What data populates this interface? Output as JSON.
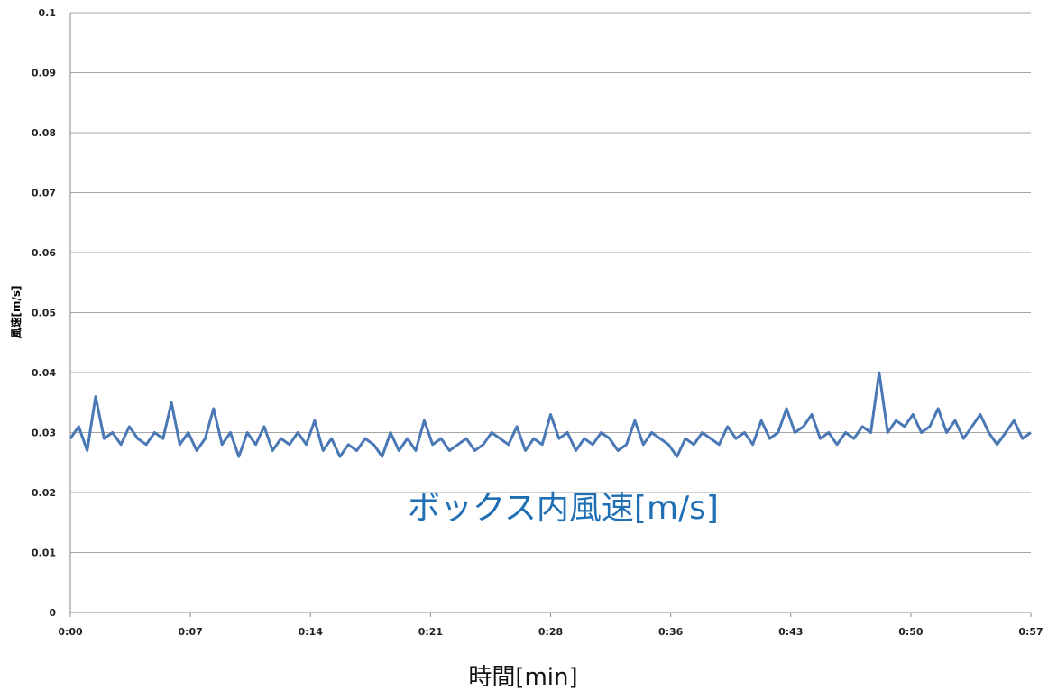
{
  "chart_data": {
    "type": "line",
    "title": "",
    "xlabel": "時間[min]",
    "ylabel": "風速[m/s]",
    "annotation": "ボックス内風速[m/s]",
    "xlim": [
      0,
      57
    ],
    "ylim": [
      0,
      0.1
    ],
    "x_ticks": [
      "0:00",
      "0:07",
      "0:14",
      "0:21",
      "0:28",
      "0:36",
      "0:43",
      "0:50",
      "0:57"
    ],
    "y_ticks": [
      "0",
      "0.01",
      "0.02",
      "0.03",
      "0.04",
      "0.05",
      "0.06",
      "0.07",
      "0.08",
      "0.09",
      "0.1"
    ],
    "grid": "horizontal",
    "legend": "none",
    "series": [
      {
        "color": "#4a78b5",
        "x": [
          0,
          0.5,
          1,
          1.5,
          2,
          2.5,
          3,
          3.5,
          4,
          4.5,
          5,
          5.5,
          6,
          6.5,
          7,
          7.5,
          8,
          8.5,
          9,
          9.5,
          10,
          10.5,
          11,
          11.5,
          12,
          12.5,
          13,
          13.5,
          14,
          14.5,
          15,
          15.5,
          16,
          16.5,
          17,
          17.5,
          18,
          18.5,
          19,
          19.5,
          20,
          20.5,
          21,
          21.5,
          22,
          22.5,
          23,
          23.5,
          24,
          24.5,
          25,
          25.5,
          26,
          26.5,
          27,
          27.5,
          28,
          28.5,
          29,
          29.5,
          30,
          30.5,
          31,
          31.5,
          32,
          32.5,
          33,
          33.5,
          34,
          34.5,
          35,
          35.5,
          36,
          36.5,
          37,
          37.5,
          38,
          38.5,
          39,
          39.5,
          40,
          40.5,
          41,
          41.5,
          42,
          42.5,
          43,
          43.5,
          44,
          44.5,
          45,
          45.5,
          46,
          46.5,
          47,
          47.5,
          48,
          48.5,
          49,
          49.5,
          50,
          50.5,
          51,
          51.5,
          52,
          52.5,
          53,
          53.5,
          54,
          54.5,
          55,
          55.5,
          56,
          56.5,
          57
        ],
        "y": [
          0.029,
          0.031,
          0.027,
          0.036,
          0.029,
          0.03,
          0.028,
          0.031,
          0.029,
          0.028,
          0.03,
          0.029,
          0.035,
          0.028,
          0.03,
          0.027,
          0.029,
          0.034,
          0.028,
          0.03,
          0.026,
          0.03,
          0.028,
          0.031,
          0.027,
          0.029,
          0.028,
          0.03,
          0.028,
          0.032,
          0.027,
          0.029,
          0.026,
          0.028,
          0.027,
          0.029,
          0.028,
          0.026,
          0.03,
          0.027,
          0.029,
          0.027,
          0.032,
          0.028,
          0.029,
          0.027,
          0.028,
          0.029,
          0.027,
          0.028,
          0.03,
          0.029,
          0.028,
          0.031,
          0.027,
          0.029,
          0.028,
          0.033,
          0.029,
          0.03,
          0.027,
          0.029,
          0.028,
          0.03,
          0.029,
          0.027,
          0.028,
          0.032,
          0.028,
          0.03,
          0.029,
          0.028,
          0.026,
          0.029,
          0.028,
          0.03,
          0.029,
          0.028,
          0.031,
          0.029,
          0.03,
          0.028,
          0.032,
          0.029,
          0.03,
          0.034,
          0.03,
          0.031,
          0.033,
          0.029,
          0.03,
          0.028,
          0.03,
          0.029,
          0.031,
          0.03,
          0.04,
          0.03,
          0.032,
          0.031,
          0.033,
          0.03,
          0.031,
          0.034,
          0.03,
          0.032,
          0.029,
          0.031,
          0.033,
          0.03,
          0.028,
          0.03,
          0.032,
          0.029,
          0.03
        ]
      }
    ]
  }
}
